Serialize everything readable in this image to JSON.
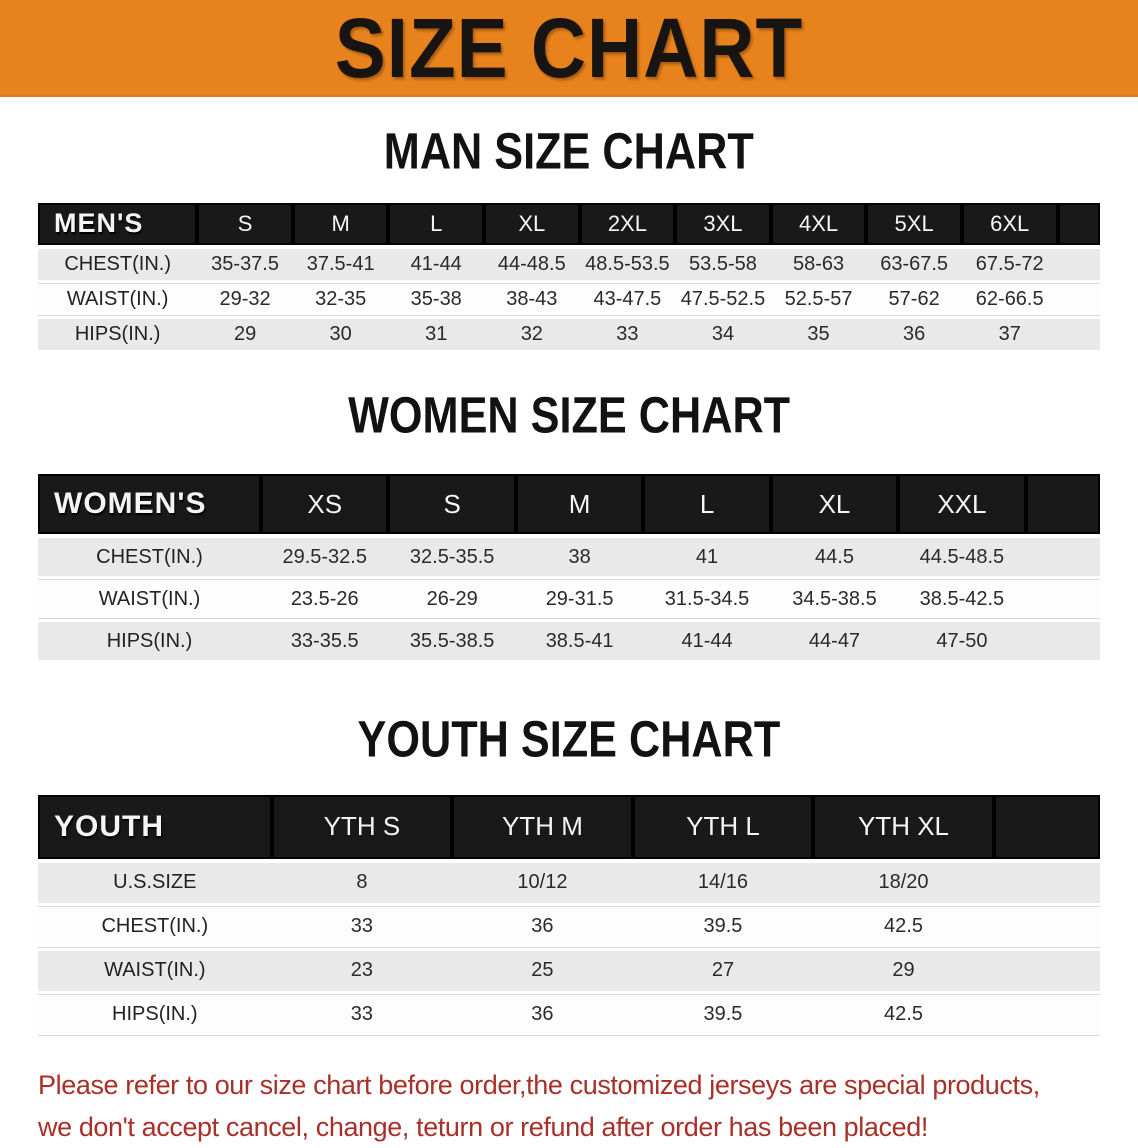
{
  "banner": {
    "title": "SIZE CHART",
    "background_color": "#E8821C",
    "text_color": "#181411"
  },
  "tables": [
    {
      "title": "MAN SIZE CHART",
      "header_label": "MEN'S",
      "columns": [
        "S",
        "M",
        "L",
        "XL",
        "2XL",
        "3XL",
        "4XL",
        "5XL",
        "6XL"
      ],
      "rows": [
        {
          "label": "CHEST(IN.)",
          "values": [
            "35-37.5",
            "37.5-41",
            "41-44",
            "44-48.5",
            "48.5-53.5",
            "53.5-58",
            "58-63",
            "63-67.5",
            "67.5-72"
          ]
        },
        {
          "label": "WAIST(IN.)",
          "values": [
            "29-32",
            "32-35",
            "35-38",
            "38-43",
            "43-47.5",
            "47.5-52.5",
            "52.5-57",
            "57-62",
            "62-66.5"
          ]
        },
        {
          "label": "HIPS(IN.)",
          "values": [
            "29",
            "30",
            "31",
            "32",
            "33",
            "34",
            "35",
            "36",
            "37"
          ]
        }
      ]
    },
    {
      "title": "WOMEN SIZE CHART",
      "header_label": "WOMEN'S",
      "columns": [
        "XS",
        "S",
        "M",
        "L",
        "XL",
        "XXL"
      ],
      "rows": [
        {
          "label": "CHEST(IN.)",
          "values": [
            "29.5-32.5",
            "32.5-35.5",
            "38",
            "41",
            "44.5",
            "44.5-48.5"
          ]
        },
        {
          "label": "WAIST(IN.)",
          "values": [
            "23.5-26",
            "26-29",
            "29-31.5",
            "31.5-34.5",
            "34.5-38.5",
            "38.5-42.5"
          ]
        },
        {
          "label": "HIPS(IN.)",
          "values": [
            "33-35.5",
            "35.5-38.5",
            "38.5-41",
            "41-44",
            "44-47",
            "47-50"
          ]
        }
      ]
    },
    {
      "title": "YOUTH SIZE CHART",
      "header_label": "YOUTH",
      "columns": [
        "YTH S",
        "YTH M",
        "YTH L",
        "YTH XL"
      ],
      "rows": [
        {
          "label": "U.S.SIZE",
          "values": [
            "8",
            "10/12",
            "14/16",
            "18/20"
          ]
        },
        {
          "label": "CHEST(IN.)",
          "values": [
            "33",
            "36",
            "39.5",
            "42.5"
          ]
        },
        {
          "label": "WAIST(IN.)",
          "values": [
            "23",
            "25",
            "27",
            "29"
          ]
        },
        {
          "label": "HIPS(IN.)",
          "values": [
            "33",
            "36",
            "39.5",
            "42.5"
          ]
        }
      ]
    }
  ],
  "disclaimer": {
    "line1": "Please refer to our size chart before order,the customized jerseys are special products,",
    "line2": "we don't accept cancel, change, teturn or refund after order has been placed!",
    "text_color": "#A93028"
  }
}
